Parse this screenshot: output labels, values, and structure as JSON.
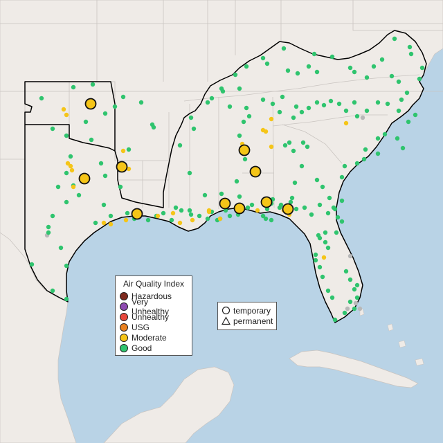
{
  "map": {
    "land_color": "#efebe7",
    "water_color": "#b9d3e6",
    "border_color": "#c9c4c0",
    "region_outline_color": "#000000"
  },
  "legend": {
    "title": "Air Quality Index",
    "levels": [
      {
        "label": "Hazardous",
        "color": "#7e2a1e"
      },
      {
        "label": "Very Unhealthy",
        "color": "#8e4bb1"
      },
      {
        "label": "Unhealthy",
        "color": "#e8483c"
      },
      {
        "label": "USG",
        "color": "#e9811f"
      },
      {
        "label": "Moderate",
        "color": "#f5c518"
      },
      {
        "label": "Good",
        "color": "#2fc46e"
      }
    ]
  },
  "monitor_types": {
    "items": [
      {
        "label": "temporary",
        "shape": "circle-icon"
      },
      {
        "label": "permanent",
        "shape": "triangle-icon"
      }
    ]
  },
  "colors": {
    "good": "#2fc46e",
    "moderate": "#f5c518",
    "no_data": "#b8b8b8",
    "outline": "#111111"
  }
}
